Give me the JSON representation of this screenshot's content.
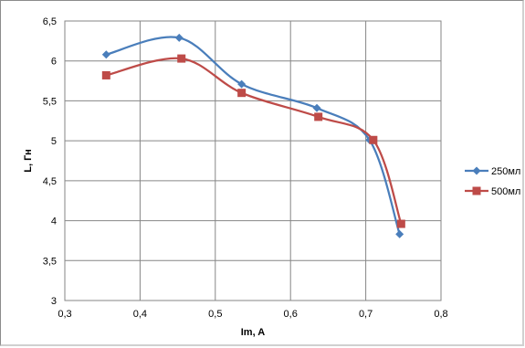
{
  "chart_data": {
    "type": "line",
    "title": "",
    "xlabel": "Im, A",
    "ylabel": "L, Гн",
    "xlim": [
      0.3,
      0.8
    ],
    "ylim": [
      3,
      6.5
    ],
    "x_ticks": [
      "0,3",
      "0,4",
      "0,5",
      "0,6",
      "0,7",
      "0,8"
    ],
    "y_ticks": [
      "3",
      "3,5",
      "4",
      "4,5",
      "5",
      "5,5",
      "6",
      "6,5"
    ],
    "grid": true,
    "smooth": true,
    "legend_position": "right",
    "series": [
      {
        "name": "250мл",
        "color": "#4a7ebb",
        "marker": "diamond",
        "x": [
          0.355,
          0.452,
          0.535,
          0.635,
          0.705,
          0.745
        ],
        "y": [
          6.08,
          6.29,
          5.71,
          5.41,
          5.01,
          3.83
        ]
      },
      {
        "name": "500мл",
        "color": "#be4b48",
        "marker": "square",
        "x": [
          0.355,
          0.455,
          0.535,
          0.637,
          0.71,
          0.747
        ],
        "y": [
          5.82,
          6.03,
          5.6,
          5.3,
          5.01,
          3.96
        ]
      }
    ]
  }
}
